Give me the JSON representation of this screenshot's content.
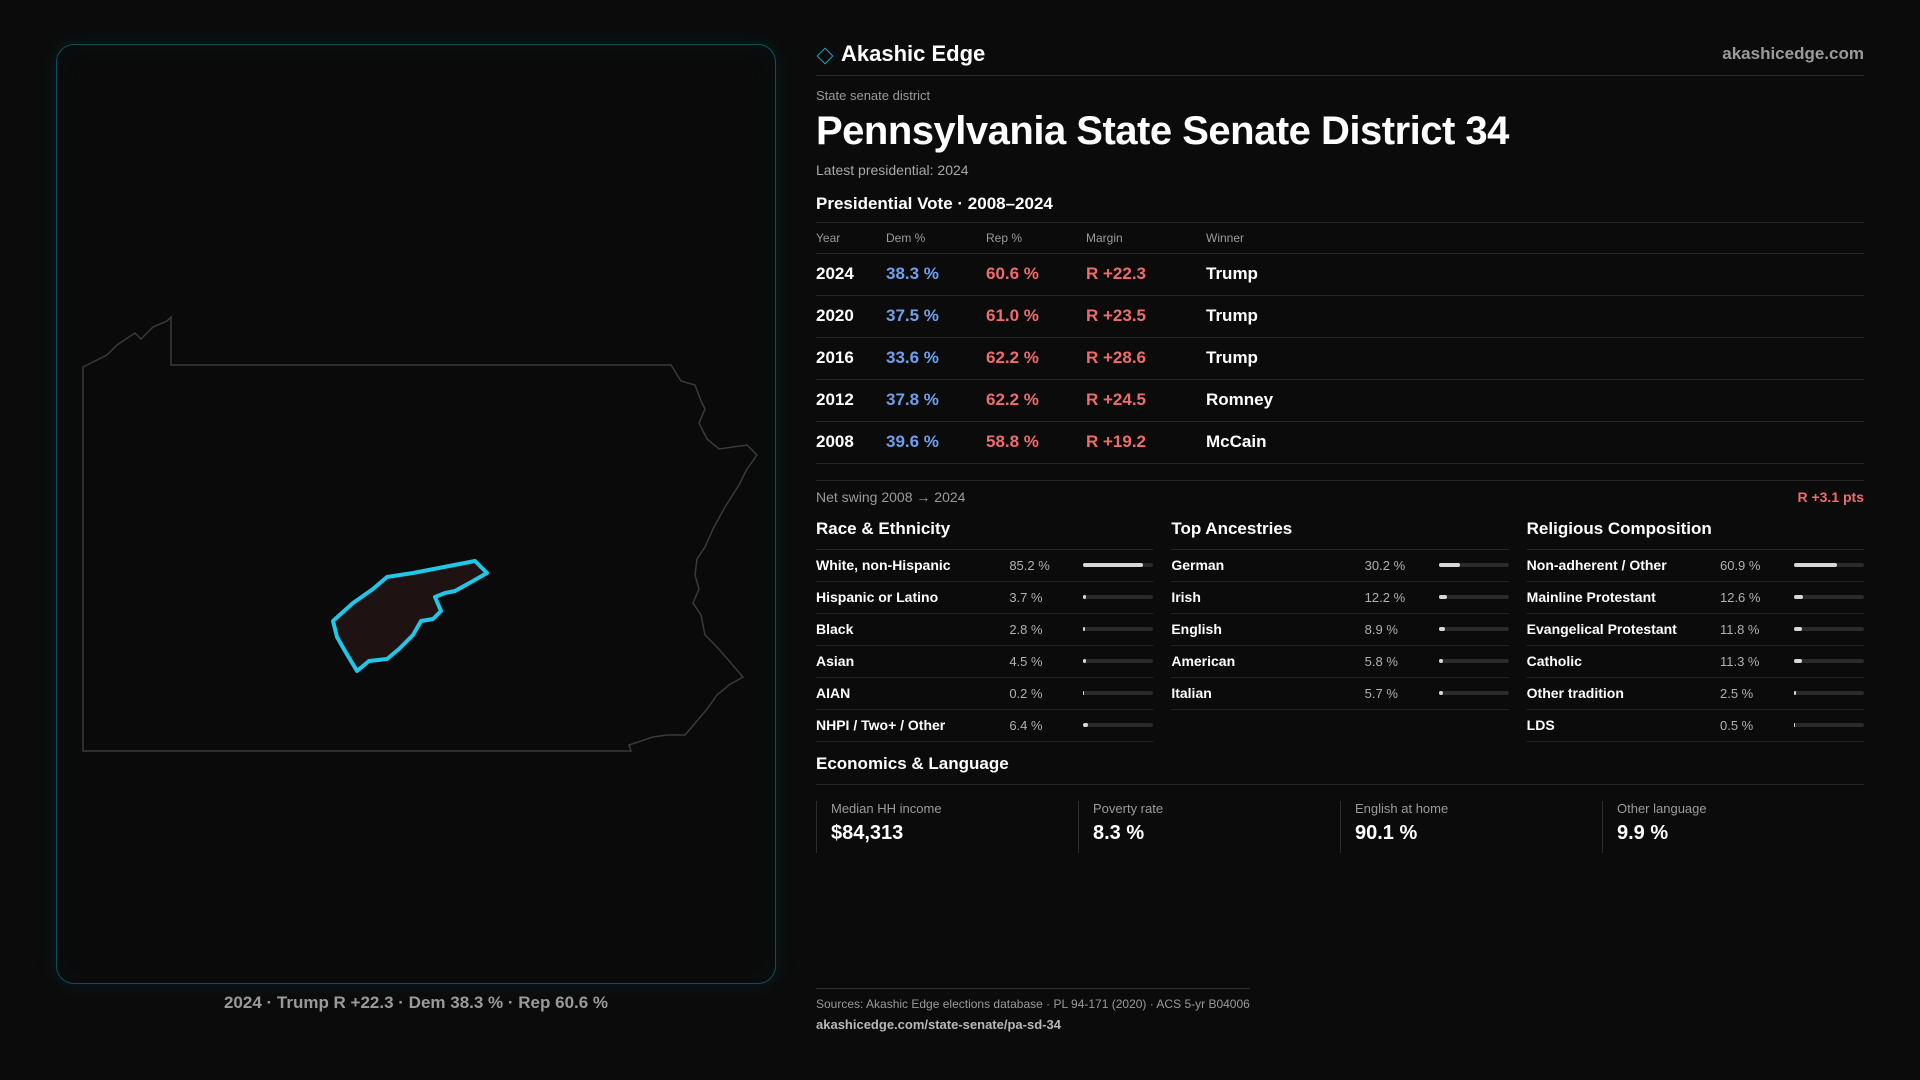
{
  "brand": {
    "name": "Akashic Edge",
    "url": "akashicedge.com",
    "accent": "#1aa8c0"
  },
  "kicker": "State senate district",
  "title": "Pennsylvania State Senate District 34",
  "latest": "Latest presidential: 2024",
  "presidential": {
    "title": "Presidential Vote · 2008–2024",
    "headers": {
      "year": "Year",
      "dem": "Dem %",
      "rep": "Rep %",
      "margin": "Margin",
      "winner": "Winner"
    },
    "rows": [
      {
        "year": "2024",
        "dem": "38.3 %",
        "rep": "60.6 %",
        "margin": "R +22.3",
        "winner": "Trump"
      },
      {
        "year": "2020",
        "dem": "37.5 %",
        "rep": "61.0 %",
        "margin": "R +23.5",
        "winner": "Trump"
      },
      {
        "year": "2016",
        "dem": "33.6 %",
        "rep": "62.2 %",
        "margin": "R +28.6",
        "winner": "Trump"
      },
      {
        "year": "2012",
        "dem": "37.8 %",
        "rep": "62.2 %",
        "margin": "R +24.5",
        "winner": "Romney"
      },
      {
        "year": "2008",
        "dem": "39.6 %",
        "rep": "58.8 %",
        "margin": "R +19.2",
        "winner": "McCain"
      }
    ],
    "colors": {
      "dem": "#6fa0ee",
      "rep": "#ee6c6c"
    }
  },
  "swing": {
    "label": "Net swing 2008 → 2024",
    "value": "R +3.1 pts"
  },
  "race": {
    "title": "Race & Ethnicity",
    "rows": [
      {
        "label": "White, non-Hispanic",
        "value": "85.2 %",
        "pct": 85.2
      },
      {
        "label": "Hispanic or Latino",
        "value": "3.7 %",
        "pct": 3.7
      },
      {
        "label": "Black",
        "value": "2.8 %",
        "pct": 2.8
      },
      {
        "label": "Asian",
        "value": "4.5 %",
        "pct": 4.5
      },
      {
        "label": "AIAN",
        "value": "0.2 %",
        "pct": 0.2
      },
      {
        "label": "NHPI / Two+ / Other",
        "value": "6.4 %",
        "pct": 6.4
      }
    ]
  },
  "ancestry": {
    "title": "Top Ancestries",
    "rows": [
      {
        "label": "German",
        "value": "30.2 %",
        "pct": 30.2
      },
      {
        "label": "Irish",
        "value": "12.2 %",
        "pct": 12.2
      },
      {
        "label": "English",
        "value": "8.9 %",
        "pct": 8.9
      },
      {
        "label": "American",
        "value": "5.8 %",
        "pct": 5.8
      },
      {
        "label": "Italian",
        "value": "5.7 %",
        "pct": 5.7
      }
    ]
  },
  "religion": {
    "title": "Religious Composition",
    "rows": [
      {
        "label": "Non-adherent / Other",
        "value": "60.9 %",
        "pct": 60.9
      },
      {
        "label": "Mainline Protestant",
        "value": "12.6 %",
        "pct": 12.6
      },
      {
        "label": "Evangelical Protestant",
        "value": "11.8 %",
        "pct": 11.8
      },
      {
        "label": "Catholic",
        "value": "11.3 %",
        "pct": 11.3
      },
      {
        "label": "Other tradition",
        "value": "2.5 %",
        "pct": 2.5
      },
      {
        "label": "LDS",
        "value": "0.5 %",
        "pct": 0.5
      }
    ]
  },
  "economics": {
    "title": "Economics & Language",
    "cards": [
      {
        "label": "Median HH income",
        "value": "$84,313"
      },
      {
        "label": "Poverty rate",
        "value": "8.3 %"
      },
      {
        "label": "English at home",
        "value": "90.1 %"
      },
      {
        "label": "Other language",
        "value": "9.9 %"
      }
    ]
  },
  "map": {
    "caption": "2024 · Trump R +22.3 · Dem 38.3 % · Rep 60.6 %",
    "district_outline_color": "#1ec8e8",
    "district_fill_color": "#1e1212"
  },
  "sources": {
    "text": "Sources: Akashic Edge elections database · PL 94-171 (2020) · ACS 5-yr B04006",
    "url": "akashicedge.com/state-senate/pa-sd-34"
  }
}
